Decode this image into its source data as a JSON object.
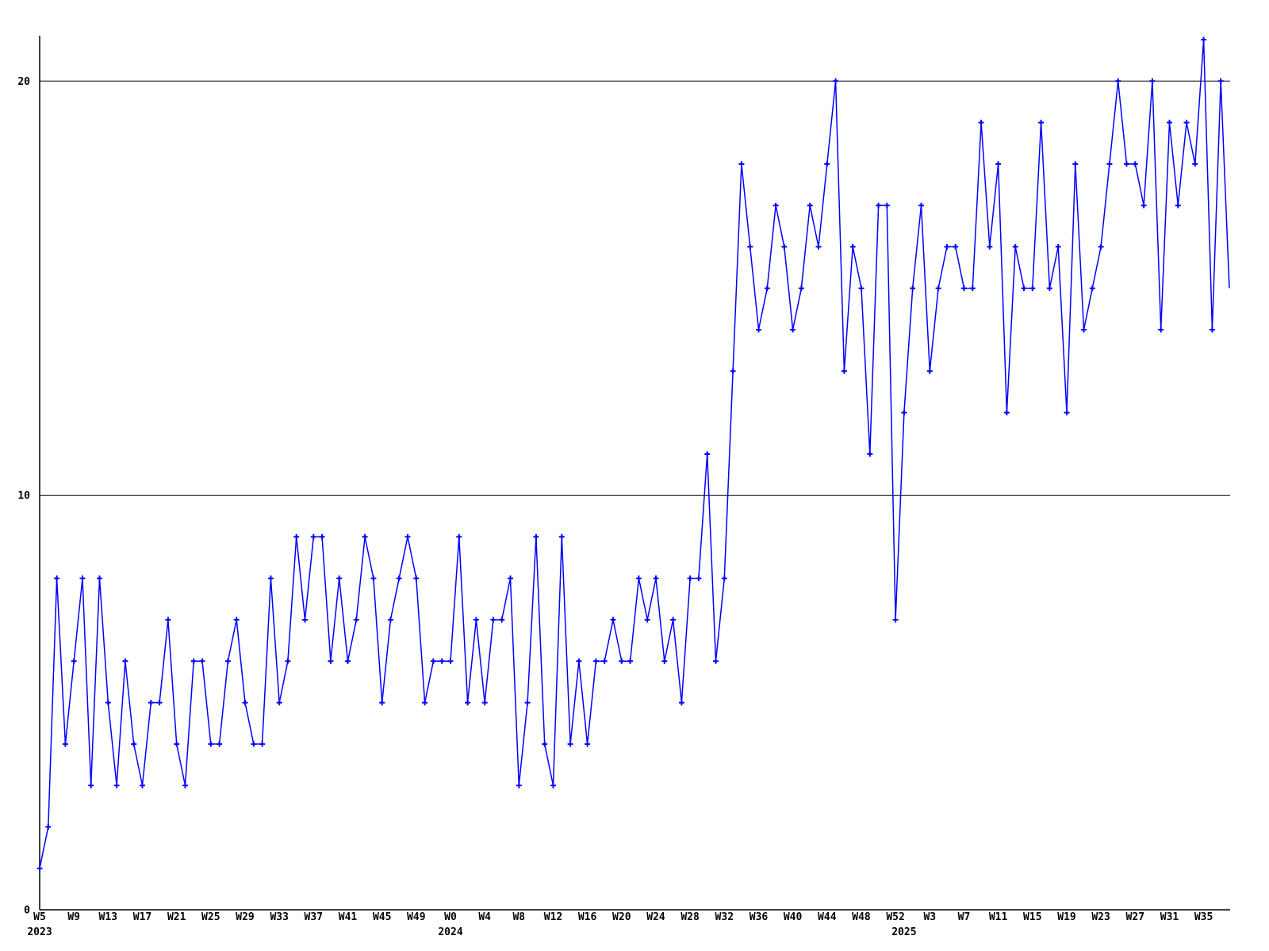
{
  "chart_data": {
    "type": "line",
    "title": "",
    "xlabel": "",
    "ylabel": "",
    "line_color": "#0000ff",
    "axis_color": "#000000",
    "background_color": "#ffffff",
    "marker": "plus",
    "grid_on": true,
    "grid_y_values": [
      10,
      20
    ],
    "y_ticks": [
      0,
      10,
      20
    ],
    "ylim": [
      0,
      21.1
    ],
    "x_tick_step": 4,
    "x_tick_labels": [
      "W5",
      "W9",
      "W13",
      "W17",
      "W21",
      "W25",
      "W29",
      "W33",
      "W37",
      "W41",
      "W45",
      "W49",
      "W0",
      "W4",
      "W8",
      "W12",
      "W16",
      "W20",
      "W24",
      "W28",
      "W32",
      "W36",
      "W40",
      "W44",
      "W48",
      "W52",
      "W3",
      "W7",
      "W11",
      "W15",
      "W19",
      "W23",
      "W27",
      "W31",
      "W35"
    ],
    "year_labels": [
      {
        "text": "2023",
        "index": 0
      },
      {
        "text": "2024",
        "index": 48
      },
      {
        "text": "2025",
        "index": 101
      }
    ],
    "last_point_clipped": true,
    "series": [
      {
        "name": "2023",
        "start_week": 5,
        "values": [
          1,
          2,
          8,
          4,
          6,
          8,
          3,
          8,
          5,
          3,
          6,
          4,
          3,
          5,
          5,
          7,
          4,
          3,
          6,
          6,
          4,
          4,
          6,
          7,
          5,
          4,
          4,
          8,
          5,
          6,
          9,
          7,
          9,
          9,
          6,
          8,
          6,
          7,
          9,
          8,
          5,
          7,
          8,
          9,
          8,
          5,
          6,
          6
        ]
      },
      {
        "name": "2024",
        "start_week": 0,
        "values": [
          6,
          9,
          5,
          7,
          5,
          7,
          7,
          8,
          3,
          5,
          9,
          4,
          3,
          9,
          4,
          6,
          4,
          6,
          6,
          7,
          6,
          6,
          8,
          7,
          8,
          6,
          7,
          5,
          8,
          8,
          11,
          6,
          8,
          13,
          18,
          16,
          14,
          15,
          17,
          16,
          14,
          15,
          17,
          16,
          18,
          20,
          13,
          16,
          15,
          11,
          17,
          17,
          7
        ]
      },
      {
        "name": "2025",
        "start_week": 0,
        "values": [
          12,
          15,
          17,
          13,
          15,
          16,
          16,
          15,
          15,
          19,
          16,
          18,
          12,
          16,
          15,
          15,
          19,
          15,
          16,
          12,
          18,
          14,
          15,
          16,
          18,
          20,
          18,
          18,
          17,
          20,
          14,
          19,
          17,
          19,
          18,
          21,
          14,
          20,
          15
        ]
      }
    ]
  }
}
